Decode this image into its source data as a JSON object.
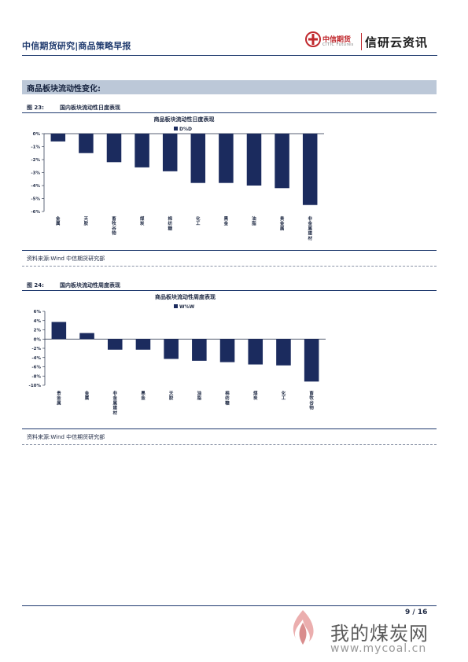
{
  "header": {
    "title": "中信期货研究|商品策略早报",
    "logo_cn": "中信期货",
    "logo_en": "CITIC Futures",
    "brand": "信研云资讯"
  },
  "section": {
    "title": "商品板块流动性变化:"
  },
  "figures": [
    {
      "label": "图 23:",
      "caption": "国内板块流动性日度表现",
      "source": "资料来源:Wind 中信期货研究部"
    },
    {
      "label": "图 24:",
      "caption": "国内板块流动性周度表现",
      "source": "资料来源:Wind 中信期货研究部"
    }
  ],
  "chart_data": [
    {
      "type": "bar",
      "title": "商品板块流动性日度表现",
      "series": [
        {
          "name": "D%D",
          "values": [
            -0.6,
            -1.5,
            -2.2,
            -2.6,
            -2.9,
            -3.8,
            -3.8,
            -4.0,
            -4.2,
            -5.5
          ]
        }
      ],
      "categories": [
        "金属",
        "天胶",
        "畜牧谷物",
        "煤炭",
        "棉纺糖",
        "化工",
        "黑金",
        "油脂",
        "贵金属",
        "非金属建材"
      ],
      "yticks": [
        "0%",
        "-1%",
        "-2%",
        "-3%",
        "-4%",
        "-5%",
        "-6%"
      ],
      "ylim": [
        -6,
        0
      ],
      "color": "#1b2b5e"
    },
    {
      "type": "bar",
      "title": "商品板块流动性周度表现",
      "series": [
        {
          "name": "W%W",
          "values": [
            3.7,
            1.3,
            -2.3,
            -2.3,
            -4.3,
            -4.7,
            -5.0,
            -5.5,
            -5.7,
            -9.2
          ]
        }
      ],
      "categories": [
        "贵金属",
        "金属",
        "非金属建材",
        "黑金",
        "天胶",
        "油脂",
        "棉纺糖",
        "煤炭",
        "化工",
        "畜牧谷物"
      ],
      "yticks": [
        "6%",
        "4%",
        "2%",
        "0%",
        "-2%",
        "-4%",
        "-6%",
        "-8%",
        "-10%"
      ],
      "ylim": [
        -10,
        6
      ],
      "color": "#1b2b5e"
    }
  ],
  "footer": {
    "page": "9 / 16",
    "watermark_text": "我的煤炭网",
    "watermark_url": "www.mycoal.cn"
  }
}
